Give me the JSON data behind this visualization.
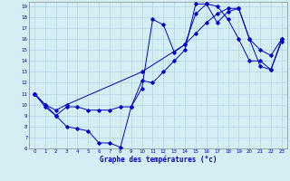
{
  "xlabel": "Graphe des températures (°c)",
  "bg_color": "#d4eef4",
  "line_color": "#0000cc",
  "grid_color": "#b8d8e8",
  "xlim": [
    -0.5,
    23.5
  ],
  "ylim": [
    6,
    19.4
  ],
  "yticks": [
    6,
    7,
    8,
    9,
    10,
    11,
    12,
    13,
    14,
    15,
    16,
    17,
    18,
    19
  ],
  "xticks": [
    0,
    1,
    2,
    3,
    4,
    5,
    6,
    7,
    8,
    9,
    10,
    11,
    12,
    13,
    14,
    15,
    16,
    17,
    18,
    19,
    20,
    21,
    22,
    23
  ],
  "series1_x": [
    0,
    1,
    2,
    3,
    4,
    5,
    6,
    7,
    8,
    9,
    10,
    11,
    12,
    13,
    14,
    15,
    16,
    17,
    18,
    19,
    20,
    21,
    22,
    23
  ],
  "series1_y": [
    11,
    10,
    9,
    8,
    7.8,
    7.6,
    6.5,
    6.5,
    6.1,
    9.8,
    12.2,
    12.0,
    13.0,
    14.0,
    15.0,
    19.2,
    19.2,
    19.0,
    17.8,
    16.0,
    14.0,
    14.0,
    13.2,
    15.8
  ],
  "series2_x": [
    0,
    1,
    2,
    3,
    4,
    5,
    6,
    7,
    8,
    9,
    10,
    11,
    12,
    13,
    14,
    15,
    16,
    17,
    18,
    19,
    20,
    21,
    22,
    23
  ],
  "series2_y": [
    11,
    9.8,
    9.0,
    9.8,
    9.8,
    9.5,
    9.5,
    9.5,
    9.8,
    9.8,
    11.5,
    17.8,
    17.3,
    14.8,
    15.5,
    18.3,
    19.2,
    17.5,
    18.5,
    18.8,
    16.0,
    15.0,
    14.5,
    16.0
  ],
  "series3_x": [
    0,
    1,
    2,
    3,
    10,
    14,
    15,
    16,
    17,
    18,
    19,
    20,
    21,
    22,
    23
  ],
  "series3_y": [
    11,
    10,
    9.5,
    10.0,
    13.0,
    15.5,
    16.5,
    17.5,
    18.3,
    18.8,
    18.8,
    16.0,
    13.5,
    13.2,
    16.0
  ]
}
